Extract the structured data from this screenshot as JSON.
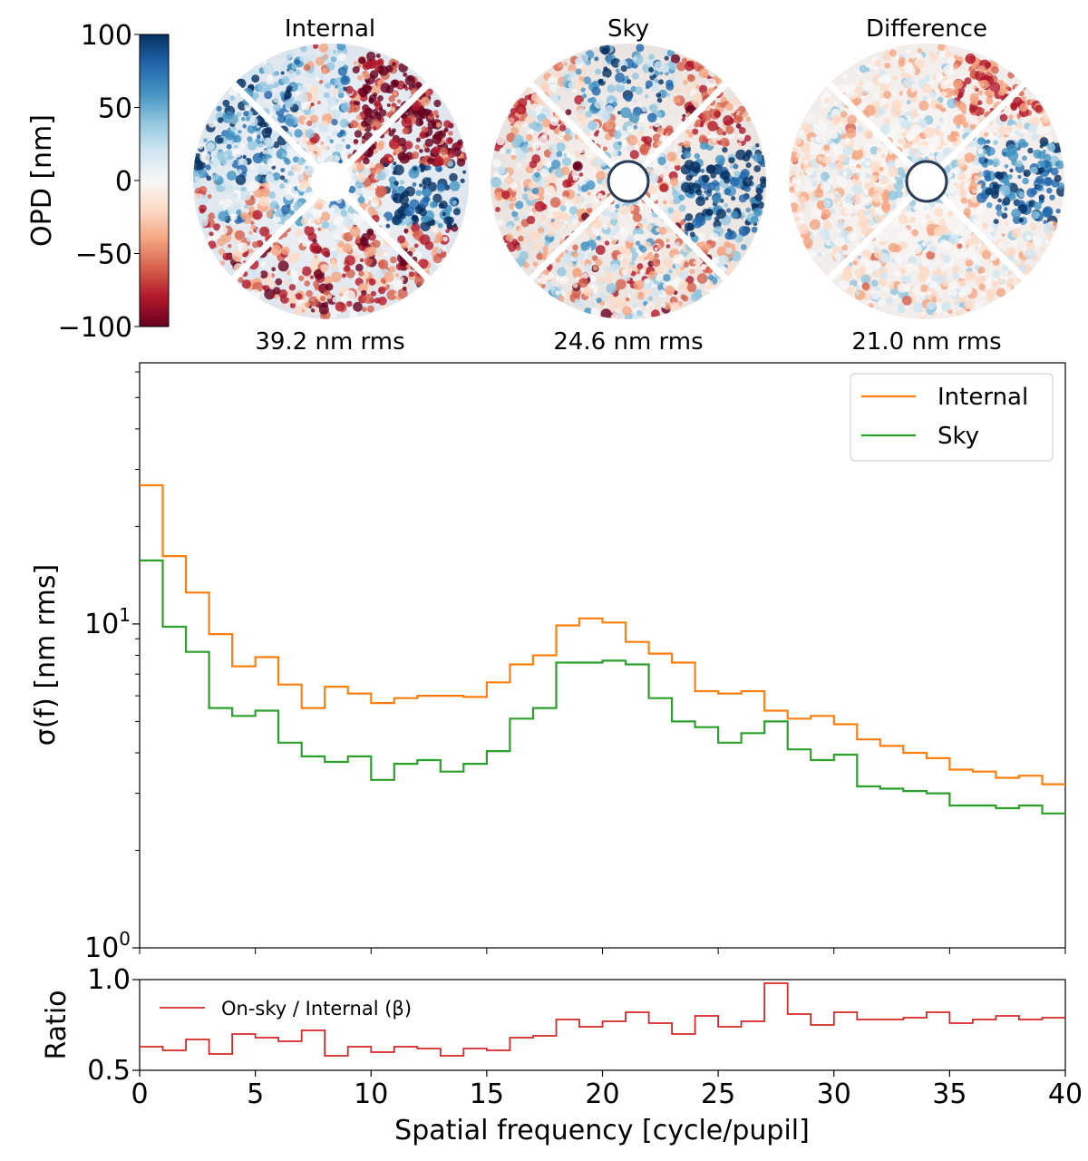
{
  "colorbar": {
    "label": "OPD [nm]",
    "ticks": [
      "100",
      "50",
      "0",
      "−50",
      "−100"
    ],
    "tick_values": [
      100,
      50,
      0,
      -50,
      -100
    ],
    "range": [
      -100,
      100
    ],
    "colormap": [
      "#67001f",
      "#b2182b",
      "#d6604d",
      "#f4a582",
      "#fddbc7",
      "#f7f7f7",
      "#d1e5f0",
      "#92c5de",
      "#4393c3",
      "#2166ac",
      "#053061"
    ]
  },
  "maps": [
    {
      "title": "Internal",
      "rms_label": "39.2 nm rms"
    },
    {
      "title": "Sky",
      "rms_label": "24.6 nm rms"
    },
    {
      "title": "Difference",
      "rms_label": "21.0 nm rms"
    }
  ],
  "chart_data": [
    {
      "type": "line",
      "drawstyle": "steps-post",
      "yscale": "log",
      "ylabel": "σ(f) [nm rms]",
      "xlabel": "",
      "xlim": [
        0,
        40
      ],
      "ylim": [
        1,
        64
      ],
      "ytick_labels": [
        {
          "base": "10",
          "exp": "0",
          "value": 1
        },
        {
          "base": "10",
          "exp": "1",
          "value": 10
        }
      ],
      "x_edges": [
        0,
        1,
        2,
        3,
        4,
        5,
        6,
        7,
        8,
        9,
        10,
        11,
        12,
        13,
        14,
        15,
        16,
        17,
        18,
        19,
        20,
        21,
        22,
        23,
        24,
        25,
        26,
        27,
        28,
        29,
        30,
        31,
        32,
        33,
        34,
        35,
        36,
        37,
        38,
        39,
        40
      ],
      "legend_position": "upper right",
      "series": [
        {
          "name": "Internal",
          "color": "#ff7f0e",
          "values": [
            26.8,
            16.2,
            12.5,
            9.3,
            7.4,
            7.9,
            6.5,
            5.5,
            6.4,
            6.1,
            5.7,
            5.9,
            6.0,
            6.0,
            5.95,
            6.6,
            7.5,
            8.0,
            9.9,
            10.4,
            10.1,
            8.8,
            8.1,
            7.6,
            6.2,
            6.1,
            6.2,
            5.4,
            5.1,
            5.2,
            4.9,
            4.4,
            4.2,
            4.0,
            3.85,
            3.55,
            3.5,
            3.35,
            3.4,
            3.2
          ]
        },
        {
          "name": "Sky",
          "color": "#2ca02c",
          "values": [
            15.7,
            9.8,
            8.2,
            5.5,
            5.2,
            5.4,
            4.3,
            3.9,
            3.75,
            3.9,
            3.3,
            3.7,
            3.8,
            3.5,
            3.7,
            4.05,
            5.1,
            5.5,
            7.6,
            7.6,
            7.7,
            7.5,
            5.9,
            5.0,
            4.8,
            4.3,
            4.6,
            5.0,
            4.1,
            3.8,
            3.95,
            3.15,
            3.1,
            3.05,
            3.0,
            2.75,
            2.75,
            2.7,
            2.75,
            2.6
          ]
        }
      ]
    },
    {
      "type": "line",
      "drawstyle": "steps-post",
      "ylabel": "Ratio",
      "xlabel": "Spatial frequency [cycle/pupil]",
      "xlim": [
        0,
        40
      ],
      "ylim": [
        0.5,
        1.0
      ],
      "yticks": [
        "0.5",
        "1.0"
      ],
      "ytick_values": [
        0.5,
        1.0
      ],
      "xticks": [
        "0",
        "5",
        "10",
        "15",
        "20",
        "25",
        "30",
        "35",
        "40"
      ],
      "xtick_values": [
        0,
        5,
        10,
        15,
        20,
        25,
        30,
        35,
        40
      ],
      "legend_position": "upper left",
      "series": [
        {
          "name": "On-sky / Internal (β)",
          "color": "#d62728",
          "values": [
            0.63,
            0.61,
            0.67,
            0.59,
            0.7,
            0.68,
            0.66,
            0.72,
            0.58,
            0.63,
            0.6,
            0.63,
            0.62,
            0.58,
            0.62,
            0.61,
            0.68,
            0.69,
            0.78,
            0.74,
            0.77,
            0.82,
            0.76,
            0.7,
            0.8,
            0.74,
            0.77,
            0.98,
            0.81,
            0.75,
            0.82,
            0.78,
            0.78,
            0.79,
            0.82,
            0.76,
            0.78,
            0.8,
            0.78,
            0.79
          ]
        }
      ]
    }
  ]
}
